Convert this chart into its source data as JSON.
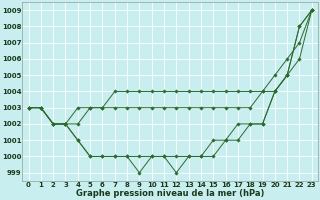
{
  "title": "Graphe pression niveau de la mer (hPa)",
  "background_color": "#c8eef0",
  "line_color": "#2d6a2d",
  "grid_color": "#ffffff",
  "xlim": [
    -0.5,
    23.5
  ],
  "ylim": [
    998.5,
    1009.5
  ],
  "yticks": [
    999,
    1000,
    1001,
    1002,
    1003,
    1004,
    1005,
    1006,
    1007,
    1008,
    1009
  ],
  "xticks": [
    0,
    1,
    2,
    3,
    4,
    5,
    6,
    7,
    8,
    9,
    10,
    11,
    12,
    13,
    14,
    15,
    16,
    17,
    18,
    19,
    20,
    21,
    22,
    23
  ],
  "lines": [
    [
      1003,
      1003,
      1002,
      1002,
      1001,
      1000,
      1000,
      1000,
      1000,
      999,
      1000,
      1000,
      999,
      1000,
      1000,
      1000,
      1001,
      1001,
      1002,
      1002,
      1004,
      1005,
      1008,
      1009
    ],
    [
      1003,
      1003,
      1002,
      1002,
      1001,
      1000,
      1000,
      1000,
      1000,
      1000,
      1000,
      1000,
      1000,
      1000,
      1000,
      1001,
      1001,
      1002,
      1002,
      1002,
      1004,
      1005,
      1008,
      1009
    ],
    [
      1003,
      1003,
      1002,
      1002,
      1002,
      1003,
      1003,
      1003,
      1003,
      1003,
      1003,
      1003,
      1003,
      1003,
      1003,
      1003,
      1003,
      1003,
      1003,
      1004,
      1004,
      1005,
      1006,
      1009
    ],
    [
      1003,
      1003,
      1002,
      1002,
      1003,
      1003,
      1003,
      1004,
      1004,
      1004,
      1004,
      1004,
      1004,
      1004,
      1004,
      1004,
      1004,
      1004,
      1004,
      1004,
      1005,
      1006,
      1007,
      1009
    ]
  ],
  "title_fontsize": 6,
  "tick_fontsize": 5,
  "ylabel_fontsize": 5
}
